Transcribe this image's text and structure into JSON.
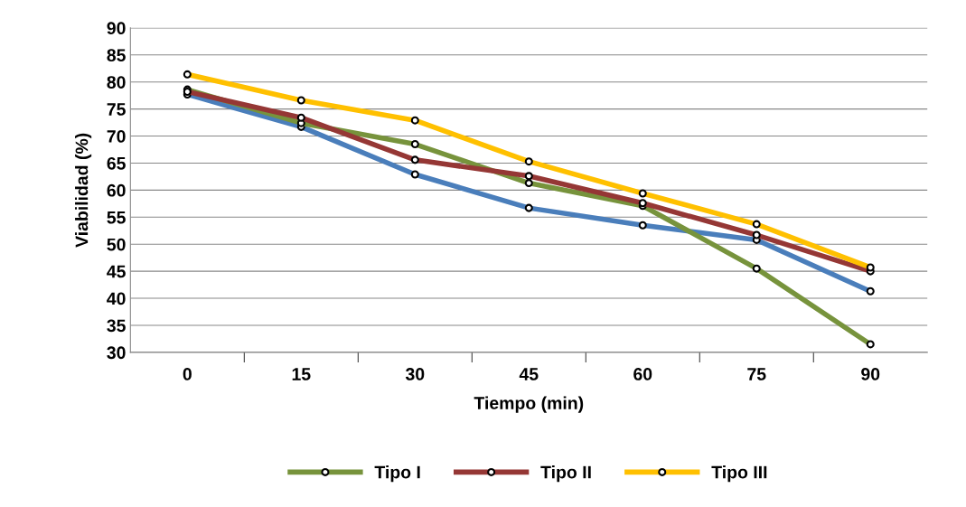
{
  "chart_data": {
    "type": "line",
    "xlabel": "Tiempo (min)",
    "ylabel": "Viabilidad (%)",
    "categories": [
      "0",
      "15",
      "30",
      "45",
      "60",
      "75",
      "90"
    ],
    "series": [
      {
        "color": "#4a7ebb",
        "values": [
          77.7,
          71.7,
          62.9,
          56.7,
          53.5,
          50.8,
          41.3
        ]
      },
      {
        "name": "Tipo I",
        "color": "#77933c",
        "values": [
          78.6,
          72.4,
          68.5,
          61.3,
          57.1,
          45.5,
          31.5
        ]
      },
      {
        "name": "Tipo II",
        "color": "#953735",
        "values": [
          78.2,
          73.4,
          65.6,
          62.6,
          57.6,
          51.7,
          45.0
        ]
      },
      {
        "name": "Tipo III",
        "color": "#ffc000",
        "values": [
          81.4,
          76.6,
          72.9,
          65.3,
          59.4,
          53.7,
          45.7
        ]
      }
    ],
    "ylim": [
      30,
      90
    ],
    "yticks": [
      30,
      35,
      40,
      45,
      50,
      55,
      60,
      65,
      70,
      75,
      80,
      85,
      90
    ],
    "grid": "y",
    "legend": "bottom",
    "marker": "circle",
    "line_style": "solid"
  }
}
